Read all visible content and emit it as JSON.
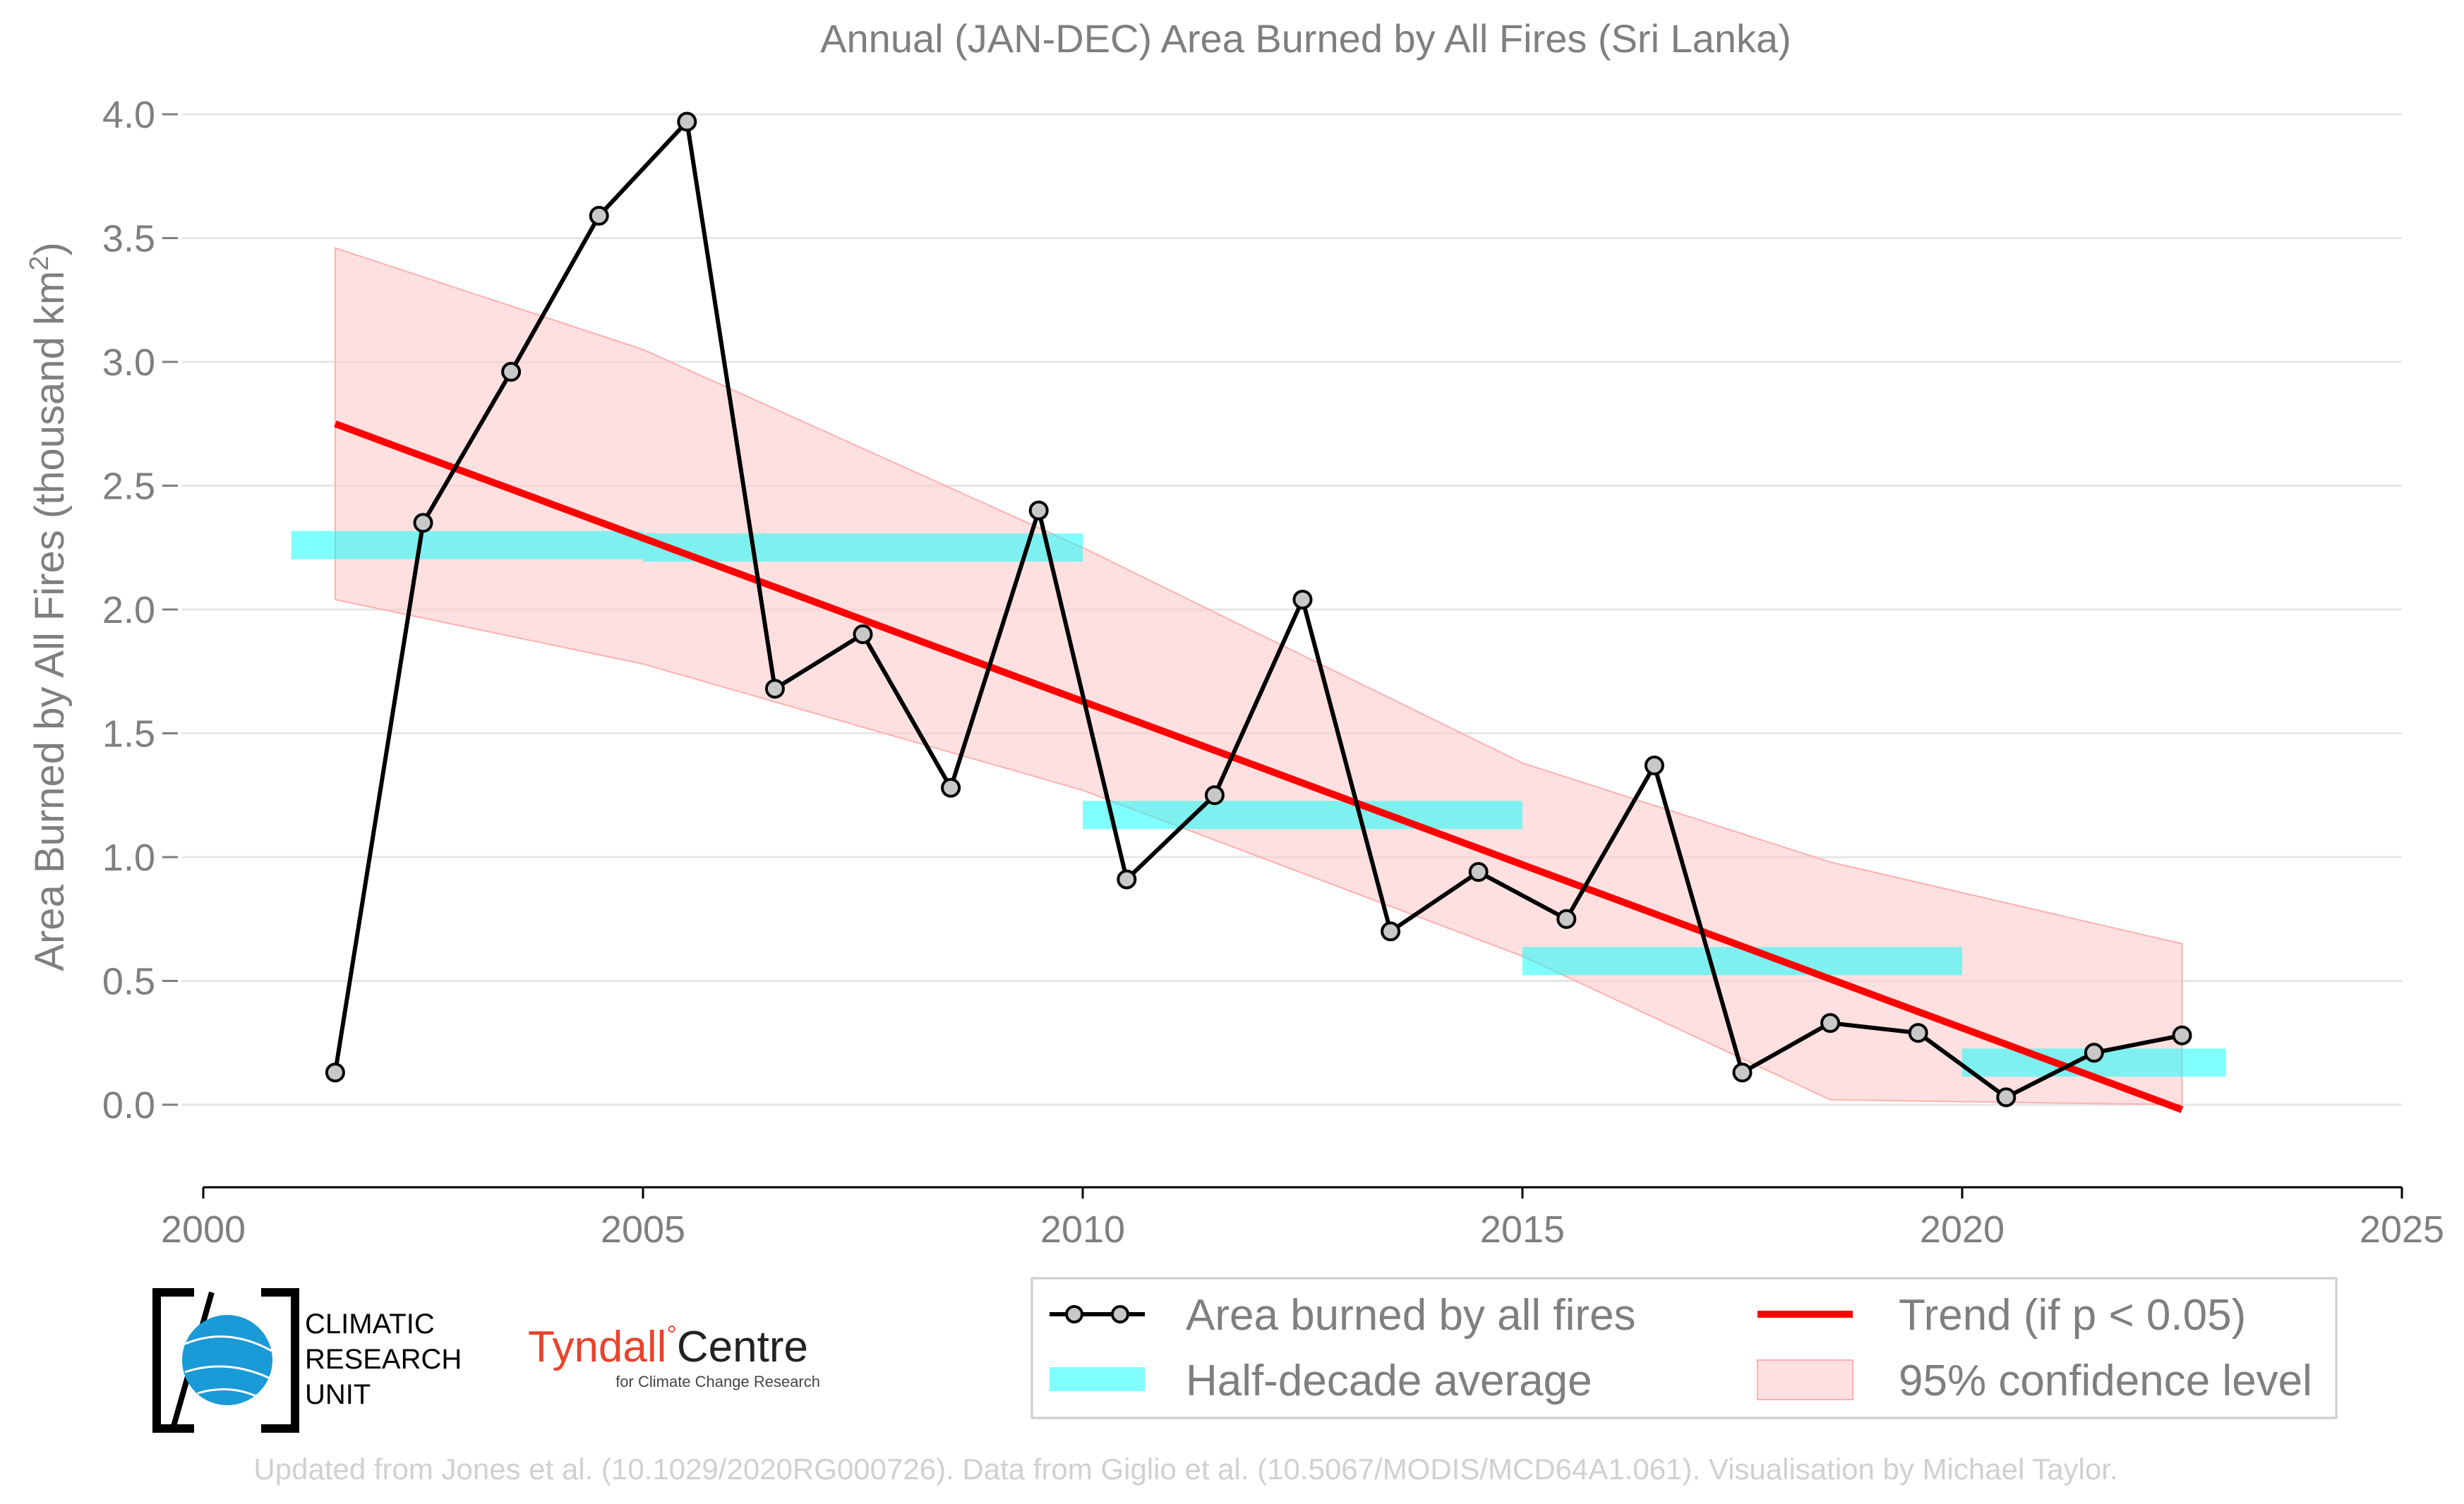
{
  "chart_data": {
    "type": "line",
    "title": "Annual (JAN-DEC) Area Burned by All Fires (Sri Lanka)",
    "ylabel": "Area Burned by All Fires (thousand km",
    "ylabel_sup": "2",
    "ylabel_close": ")",
    "xlabel": "",
    "xlim": [
      2000,
      2025
    ],
    "ylim": [
      -0.3,
      4.0
    ],
    "yticks": [
      "0.0",
      "0.5",
      "1.0",
      "1.5",
      "2.0",
      "2.5",
      "3.0",
      "3.5",
      "4.0"
    ],
    "ytick_values": [
      0.0,
      0.5,
      1.0,
      1.5,
      2.0,
      2.5,
      3.0,
      3.5,
      4.0
    ],
    "xticks": [
      "2000",
      "2005",
      "2010",
      "2015",
      "2020",
      "2025"
    ],
    "xtick_values": [
      2000,
      2005,
      2010,
      2015,
      2020,
      2025
    ],
    "grid": true,
    "series": [
      {
        "name": "Area burned by all fires",
        "kind": "line-markers",
        "color": "#000000",
        "marker_fill": "#c8c8c8",
        "x": [
          2001.5,
          2002.5,
          2003.5,
          2004.5,
          2005.5,
          2006.5,
          2007.5,
          2008.5,
          2009.5,
          2010.5,
          2011.5,
          2012.5,
          2013.5,
          2014.5,
          2015.5,
          2016.5,
          2017.5,
          2018.5,
          2019.5,
          2020.5,
          2021.5,
          2022.5
        ],
        "values": [
          0.13,
          2.35,
          2.96,
          3.59,
          3.97,
          1.68,
          1.9,
          1.28,
          2.4,
          0.91,
          1.25,
          2.04,
          0.7,
          0.94,
          0.75,
          1.37,
          0.13,
          0.33,
          0.29,
          0.03,
          0.21,
          0.28
        ]
      },
      {
        "name": "Half-decade average",
        "kind": "bars",
        "color": "#00ffff",
        "opacity": 0.5,
        "segments": [
          {
            "x0": 2001.0,
            "x1": 2005.0,
            "value": 2.26
          },
          {
            "x0": 2005.0,
            "x1": 2010.0,
            "value": 2.25
          },
          {
            "x0": 2010.0,
            "x1": 2015.0,
            "value": 1.17
          },
          {
            "x0": 2015.0,
            "x1": 2020.0,
            "value": 0.58
          },
          {
            "x0": 2020.0,
            "x1": 2023.0,
            "value": 0.17
          }
        ]
      },
      {
        "name": "Trend (if p < 0.05)",
        "kind": "trend",
        "color": "#ff0000",
        "x": [
          2001.5,
          2022.5
        ],
        "values": [
          2.75,
          -0.02
        ]
      },
      {
        "name": "95% confidence level",
        "kind": "band",
        "color": "#ffcccc",
        "opacity": 0.6,
        "x": [
          2001.5,
          2005.0,
          2010.0,
          2015.0,
          2018.5,
          2022.5
        ],
        "upper": [
          3.46,
          3.05,
          2.25,
          1.38,
          0.98,
          0.65
        ],
        "lower": [
          2.04,
          1.78,
          1.27,
          0.6,
          0.02,
          0.0
        ]
      }
    ],
    "legend_position": "bottom-right"
  },
  "legend": {
    "items": [
      {
        "label": "Area burned by all fires"
      },
      {
        "label": "Trend (if p < 0.05)"
      },
      {
        "label": "Half-decade average"
      },
      {
        "label": "95% confidence level"
      }
    ]
  },
  "logos": {
    "cru_lines": [
      "CLIMATIC",
      "RESEARCH",
      "UNIT"
    ],
    "tyndall_name": "Tyndall",
    "tyndall_degree": "°",
    "tyndall_centre": "Centre",
    "tyndall_sub": "for Climate Change Research"
  },
  "credit": "Updated from Jones et al. (10.1029/2020RG000726). Data from Giglio et al. (10.5067/MODIS/MCD64A1.061). Visualisation by Michael Taylor.",
  "colors": {
    "text_gray": "#7f7f7f",
    "grid": "#e6e6e6",
    "line": "#000000",
    "trend": "#ff0000",
    "halfdecade": "#00ffff",
    "band": "#ffcccc",
    "cru_blue": "#1a9ad6",
    "tyndall_red": "#e8432b"
  }
}
